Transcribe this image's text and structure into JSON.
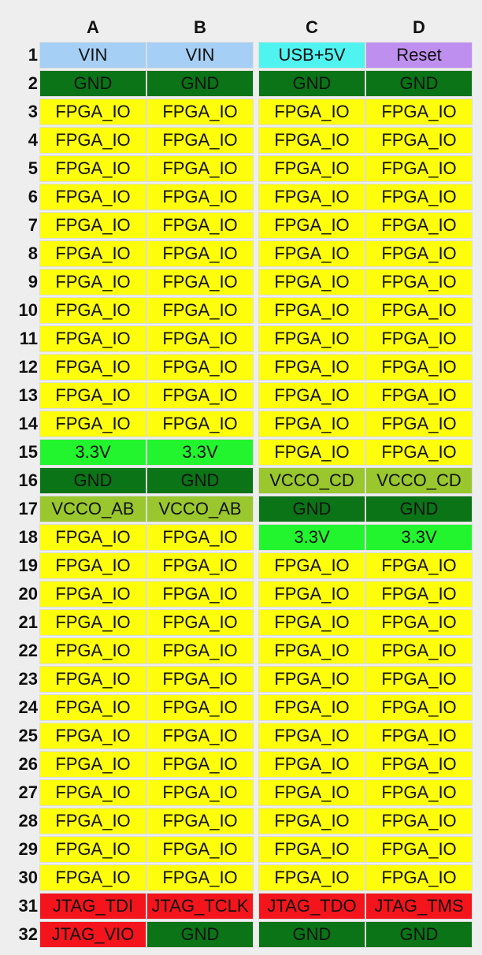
{
  "columns": [
    "A",
    "B",
    "C",
    "D"
  ],
  "legend_colors": {
    "vin": "#a6cff5",
    "usb": "#4ff4f0",
    "reset": "#bf8ff0",
    "gnd": "#0a7417",
    "io": "#fdfd0c",
    "v33": "#22f52e",
    "vcco": "#99c72d",
    "jtag": "#f4141c"
  },
  "rows": [
    {
      "num": "1",
      "cells": [
        {
          "label": "VIN",
          "type": "vin"
        },
        {
          "label": "VIN",
          "type": "vin"
        },
        {
          "label": "USB+5V",
          "type": "usb"
        },
        {
          "label": "Reset",
          "type": "reset"
        }
      ]
    },
    {
      "num": "2",
      "cells": [
        {
          "label": "GND",
          "type": "gnd"
        },
        {
          "label": "GND",
          "type": "gnd"
        },
        {
          "label": "GND",
          "type": "gnd"
        },
        {
          "label": "GND",
          "type": "gnd"
        }
      ]
    },
    {
      "num": "3",
      "cells": [
        {
          "label": "FPGA_IO",
          "type": "io"
        },
        {
          "label": "FPGA_IO",
          "type": "io"
        },
        {
          "label": "FPGA_IO",
          "type": "io"
        },
        {
          "label": "FPGA_IO",
          "type": "io"
        }
      ]
    },
    {
      "num": "4",
      "cells": [
        {
          "label": "FPGA_IO",
          "type": "io"
        },
        {
          "label": "FPGA_IO",
          "type": "io"
        },
        {
          "label": "FPGA_IO",
          "type": "io"
        },
        {
          "label": "FPGA_IO",
          "type": "io"
        }
      ]
    },
    {
      "num": "5",
      "cells": [
        {
          "label": "FPGA_IO",
          "type": "io"
        },
        {
          "label": "FPGA_IO",
          "type": "io"
        },
        {
          "label": "FPGA_IO",
          "type": "io"
        },
        {
          "label": "FPGA_IO",
          "type": "io"
        }
      ]
    },
    {
      "num": "6",
      "cells": [
        {
          "label": "FPGA_IO",
          "type": "io"
        },
        {
          "label": "FPGA_IO",
          "type": "io"
        },
        {
          "label": "FPGA_IO",
          "type": "io"
        },
        {
          "label": "FPGA_IO",
          "type": "io"
        }
      ]
    },
    {
      "num": "7",
      "cells": [
        {
          "label": "FPGA_IO",
          "type": "io"
        },
        {
          "label": "FPGA_IO",
          "type": "io"
        },
        {
          "label": "FPGA_IO",
          "type": "io"
        },
        {
          "label": "FPGA_IO",
          "type": "io"
        }
      ]
    },
    {
      "num": "8",
      "cells": [
        {
          "label": "FPGA_IO",
          "type": "io"
        },
        {
          "label": "FPGA_IO",
          "type": "io"
        },
        {
          "label": "FPGA_IO",
          "type": "io"
        },
        {
          "label": "FPGA_IO",
          "type": "io"
        }
      ]
    },
    {
      "num": "9",
      "cells": [
        {
          "label": "FPGA_IO",
          "type": "io"
        },
        {
          "label": "FPGA_IO",
          "type": "io"
        },
        {
          "label": "FPGA_IO",
          "type": "io"
        },
        {
          "label": "FPGA_IO",
          "type": "io"
        }
      ]
    },
    {
      "num": "10",
      "cells": [
        {
          "label": "FPGA_IO",
          "type": "io"
        },
        {
          "label": "FPGA_IO",
          "type": "io"
        },
        {
          "label": "FPGA_IO",
          "type": "io"
        },
        {
          "label": "FPGA_IO",
          "type": "io"
        }
      ]
    },
    {
      "num": "11",
      "cells": [
        {
          "label": "FPGA_IO",
          "type": "io"
        },
        {
          "label": "FPGA_IO",
          "type": "io"
        },
        {
          "label": "FPGA_IO",
          "type": "io"
        },
        {
          "label": "FPGA_IO",
          "type": "io"
        }
      ]
    },
    {
      "num": "12",
      "cells": [
        {
          "label": "FPGA_IO",
          "type": "io"
        },
        {
          "label": "FPGA_IO",
          "type": "io"
        },
        {
          "label": "FPGA_IO",
          "type": "io"
        },
        {
          "label": "FPGA_IO",
          "type": "io"
        }
      ]
    },
    {
      "num": "13",
      "cells": [
        {
          "label": "FPGA_IO",
          "type": "io"
        },
        {
          "label": "FPGA_IO",
          "type": "io"
        },
        {
          "label": "FPGA_IO",
          "type": "io"
        },
        {
          "label": "FPGA_IO",
          "type": "io"
        }
      ]
    },
    {
      "num": "14",
      "cells": [
        {
          "label": "FPGA_IO",
          "type": "io"
        },
        {
          "label": "FPGA_IO",
          "type": "io"
        },
        {
          "label": "FPGA_IO",
          "type": "io"
        },
        {
          "label": "FPGA_IO",
          "type": "io"
        }
      ]
    },
    {
      "num": "15",
      "cells": [
        {
          "label": "3.3V",
          "type": "v33"
        },
        {
          "label": "3.3V",
          "type": "v33"
        },
        {
          "label": "FPGA_IO",
          "type": "io"
        },
        {
          "label": "FPGA_IO",
          "type": "io"
        }
      ]
    },
    {
      "num": "16",
      "cells": [
        {
          "label": "GND",
          "type": "gnd"
        },
        {
          "label": "GND",
          "type": "gnd"
        },
        {
          "label": "VCCO_CD",
          "type": "vcco"
        },
        {
          "label": "VCCO_CD",
          "type": "vcco"
        }
      ]
    },
    {
      "num": "17",
      "cells": [
        {
          "label": "VCCO_AB",
          "type": "vcco"
        },
        {
          "label": "VCCO_AB",
          "type": "vcco"
        },
        {
          "label": "GND",
          "type": "gnd"
        },
        {
          "label": "GND",
          "type": "gnd"
        }
      ]
    },
    {
      "num": "18",
      "cells": [
        {
          "label": "FPGA_IO",
          "type": "io"
        },
        {
          "label": "FPGA_IO",
          "type": "io"
        },
        {
          "label": "3.3V",
          "type": "v33"
        },
        {
          "label": "3.3V",
          "type": "v33"
        }
      ]
    },
    {
      "num": "19",
      "cells": [
        {
          "label": "FPGA_IO",
          "type": "io"
        },
        {
          "label": "FPGA_IO",
          "type": "io"
        },
        {
          "label": "FPGA_IO",
          "type": "io"
        },
        {
          "label": "FPGA_IO",
          "type": "io"
        }
      ]
    },
    {
      "num": "20",
      "cells": [
        {
          "label": "FPGA_IO",
          "type": "io"
        },
        {
          "label": "FPGA_IO",
          "type": "io"
        },
        {
          "label": "FPGA_IO",
          "type": "io"
        },
        {
          "label": "FPGA_IO",
          "type": "io"
        }
      ]
    },
    {
      "num": "21",
      "cells": [
        {
          "label": "FPGA_IO",
          "type": "io"
        },
        {
          "label": "FPGA_IO",
          "type": "io"
        },
        {
          "label": "FPGA_IO",
          "type": "io"
        },
        {
          "label": "FPGA_IO",
          "type": "io"
        }
      ]
    },
    {
      "num": "22",
      "cells": [
        {
          "label": "FPGA_IO",
          "type": "io"
        },
        {
          "label": "FPGA_IO",
          "type": "io"
        },
        {
          "label": "FPGA_IO",
          "type": "io"
        },
        {
          "label": "FPGA_IO",
          "type": "io"
        }
      ]
    },
    {
      "num": "23",
      "cells": [
        {
          "label": "FPGA_IO",
          "type": "io"
        },
        {
          "label": "FPGA_IO",
          "type": "io"
        },
        {
          "label": "FPGA_IO",
          "type": "io"
        },
        {
          "label": "FPGA_IO",
          "type": "io"
        }
      ]
    },
    {
      "num": "24",
      "cells": [
        {
          "label": "FPGA_IO",
          "type": "io"
        },
        {
          "label": "FPGA_IO",
          "type": "io"
        },
        {
          "label": "FPGA_IO",
          "type": "io"
        },
        {
          "label": "FPGA_IO",
          "type": "io"
        }
      ]
    },
    {
      "num": "25",
      "cells": [
        {
          "label": "FPGA_IO",
          "type": "io"
        },
        {
          "label": "FPGA_IO",
          "type": "io"
        },
        {
          "label": "FPGA_IO",
          "type": "io"
        },
        {
          "label": "FPGA_IO",
          "type": "io"
        }
      ]
    },
    {
      "num": "26",
      "cells": [
        {
          "label": "FPGA_IO",
          "type": "io"
        },
        {
          "label": "FPGA_IO",
          "type": "io"
        },
        {
          "label": "FPGA_IO",
          "type": "io"
        },
        {
          "label": "FPGA_IO",
          "type": "io"
        }
      ]
    },
    {
      "num": "27",
      "cells": [
        {
          "label": "FPGA_IO",
          "type": "io"
        },
        {
          "label": "FPGA_IO",
          "type": "io"
        },
        {
          "label": "FPGA_IO",
          "type": "io"
        },
        {
          "label": "FPGA_IO",
          "type": "io"
        }
      ]
    },
    {
      "num": "28",
      "cells": [
        {
          "label": "FPGA_IO",
          "type": "io"
        },
        {
          "label": "FPGA_IO",
          "type": "io"
        },
        {
          "label": "FPGA_IO",
          "type": "io"
        },
        {
          "label": "FPGA_IO",
          "type": "io"
        }
      ]
    },
    {
      "num": "29",
      "cells": [
        {
          "label": "FPGA_IO",
          "type": "io"
        },
        {
          "label": "FPGA_IO",
          "type": "io"
        },
        {
          "label": "FPGA_IO",
          "type": "io"
        },
        {
          "label": "FPGA_IO",
          "type": "io"
        }
      ]
    },
    {
      "num": "30",
      "cells": [
        {
          "label": "FPGA_IO",
          "type": "io"
        },
        {
          "label": "FPGA_IO",
          "type": "io"
        },
        {
          "label": "FPGA_IO",
          "type": "io"
        },
        {
          "label": "FPGA_IO",
          "type": "io"
        }
      ]
    },
    {
      "num": "31",
      "cells": [
        {
          "label": "JTAG_TDI",
          "type": "jtag"
        },
        {
          "label": "JTAG_TCLK",
          "type": "jtag"
        },
        {
          "label": "JTAG_TDO",
          "type": "jtag"
        },
        {
          "label": "JTAG_TMS",
          "type": "jtag"
        }
      ]
    },
    {
      "num": "32",
      "cells": [
        {
          "label": "JTAG_VIO",
          "type": "jtag"
        },
        {
          "label": "GND",
          "type": "gnd"
        },
        {
          "label": "GND",
          "type": "gnd"
        },
        {
          "label": "GND",
          "type": "gnd"
        }
      ]
    }
  ]
}
